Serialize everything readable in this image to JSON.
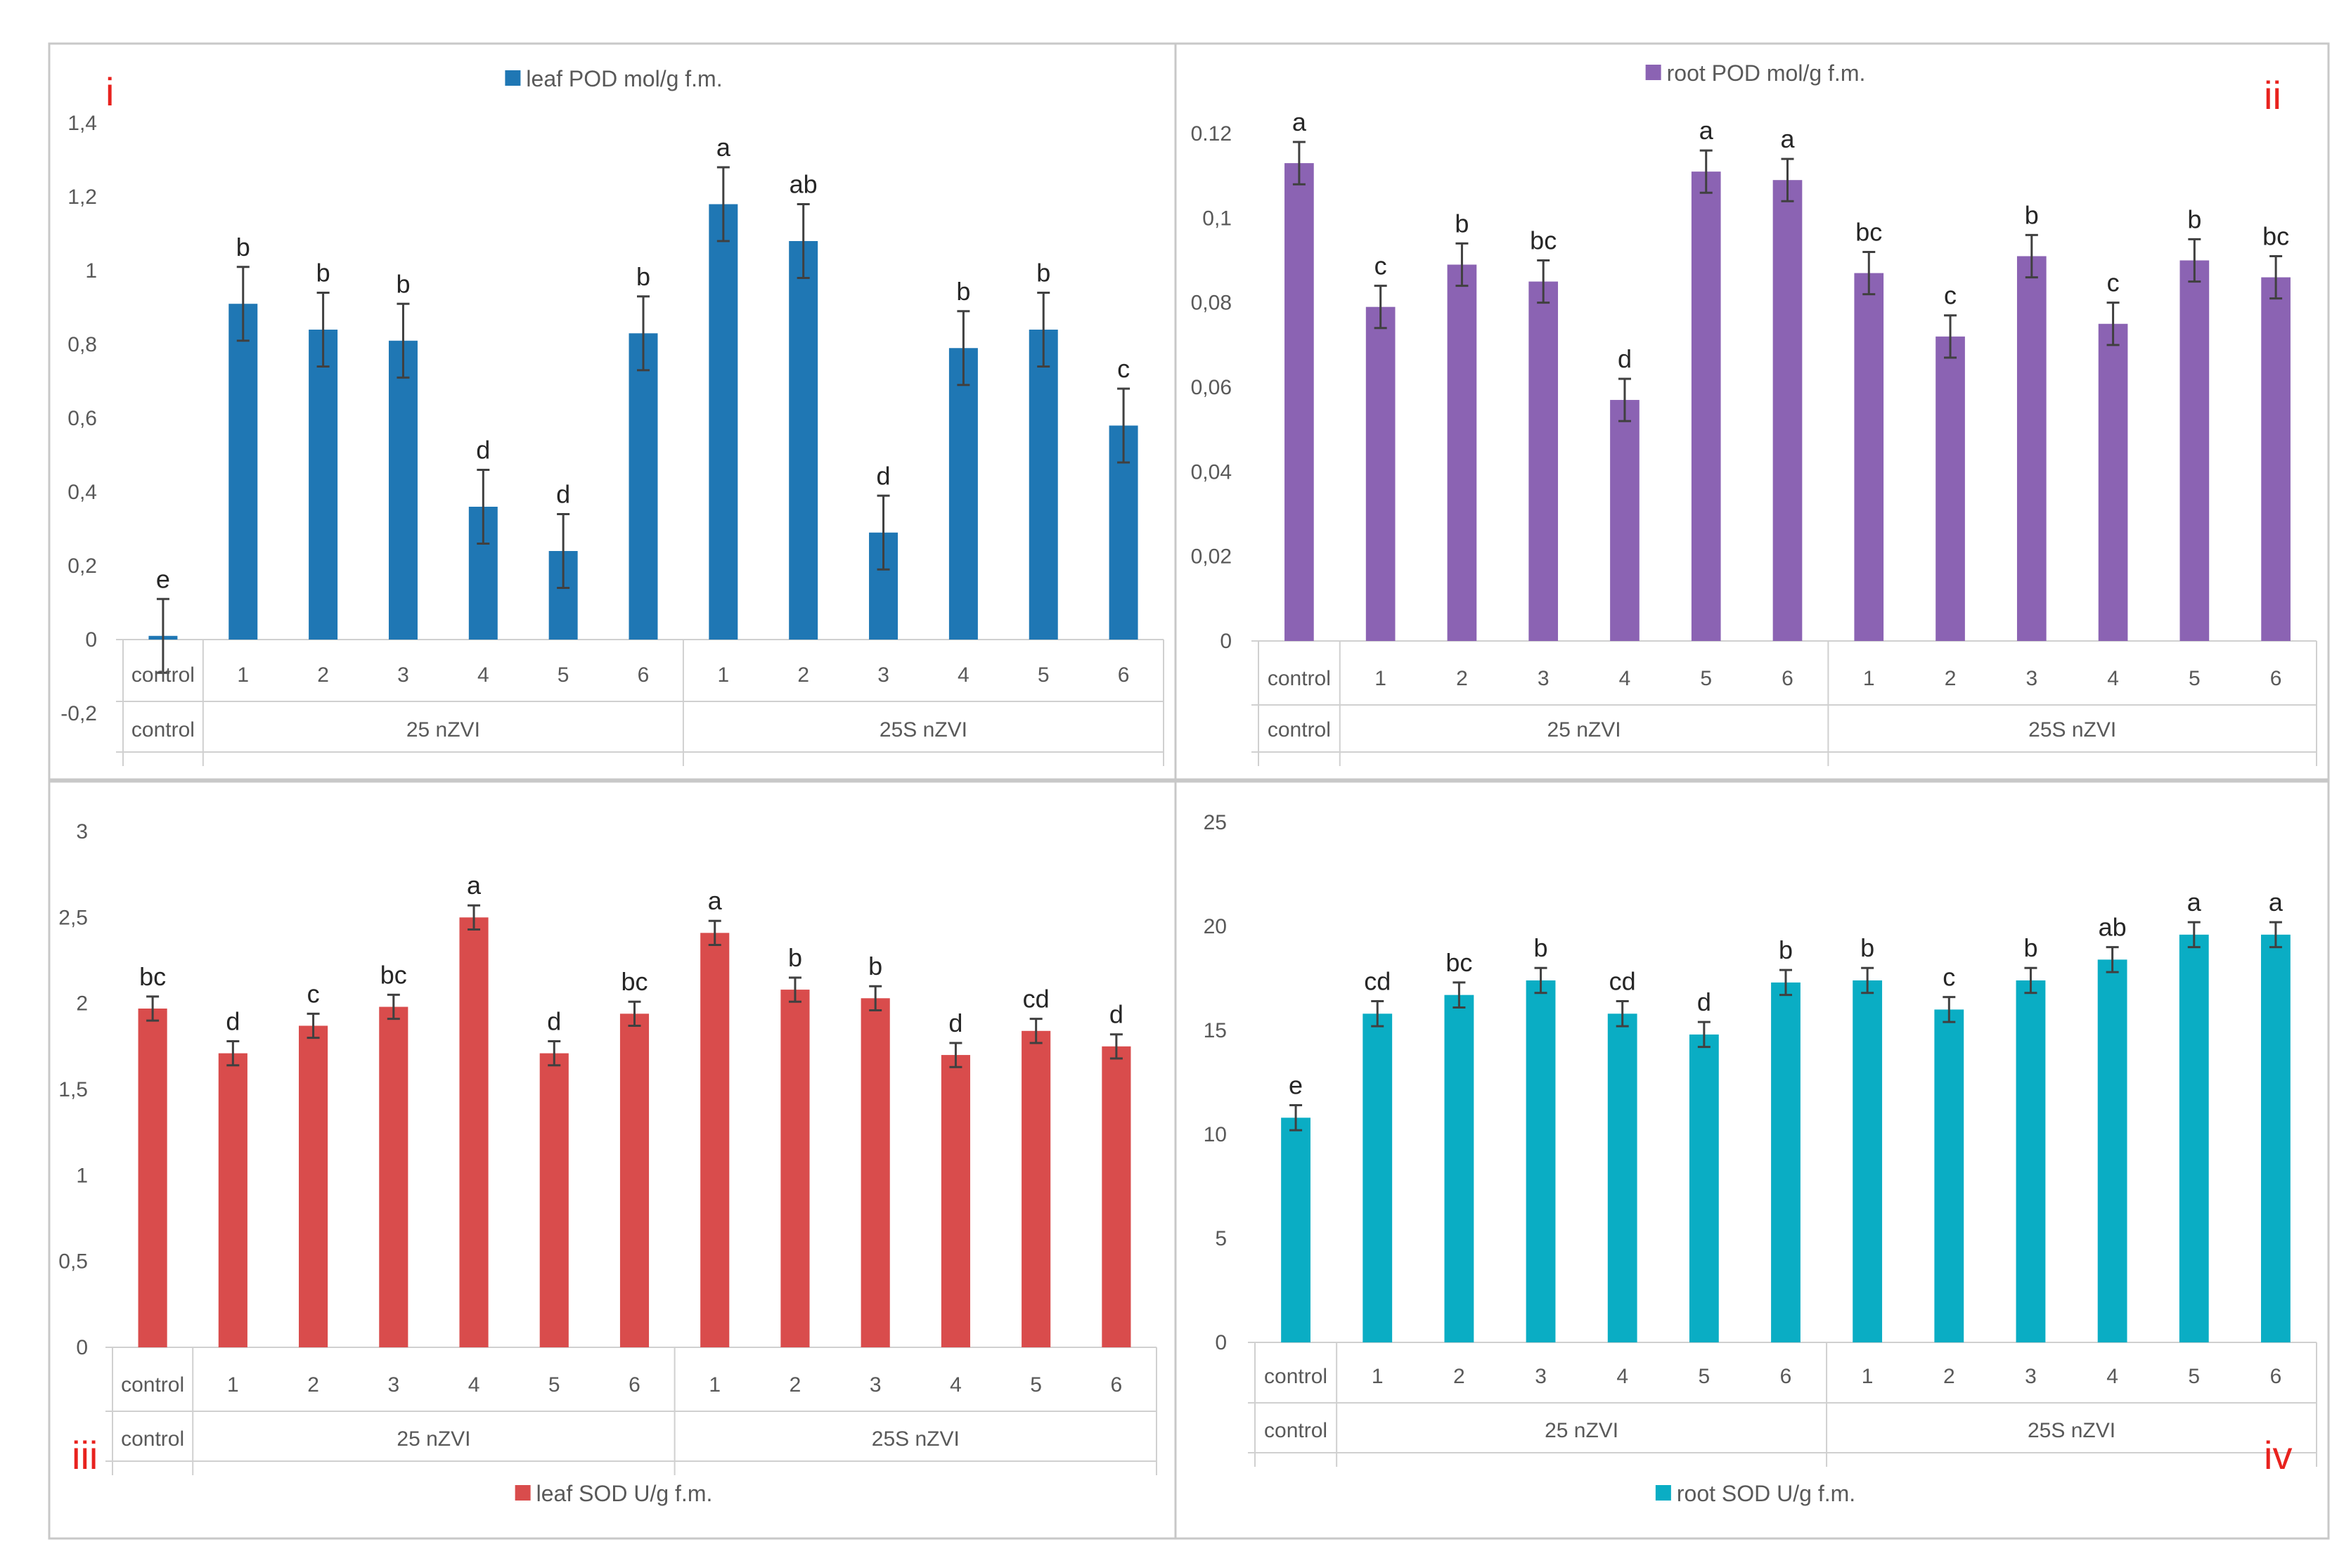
{
  "chart_data": [
    {
      "type": "bar",
      "panel": "i",
      "legend": "leaf POD mol/g f.m.",
      "legend_position": "top-center",
      "color": "#1f77b4",
      "ylim": [
        -0.2,
        1.4
      ],
      "yticks": [
        -0.2,
        0,
        0.2,
        0.4,
        0.6,
        0.8,
        1,
        1.2,
        1.4
      ],
      "ytick_labels": [
        "-0,2",
        "0",
        "0,2",
        "0,4",
        "0,6",
        "0,8",
        "1",
        "1,2",
        "1,4"
      ],
      "categories": [
        "control",
        "1",
        "2",
        "3",
        "4",
        "5",
        "6",
        "1",
        "2",
        "3",
        "4",
        "5",
        "6"
      ],
      "groups": [
        "control",
        "25 nZVI",
        "25S nZVI"
      ],
      "values": [
        0.01,
        0.91,
        0.84,
        0.81,
        0.36,
        0.24,
        0.83,
        1.18,
        1.08,
        0.29,
        0.79,
        0.84,
        0.58
      ],
      "errors": [
        0.1,
        0.1,
        0.1,
        0.1,
        0.1,
        0.1,
        0.1,
        0.1,
        0.1,
        0.1,
        0.1,
        0.1,
        0.1
      ],
      "significance": [
        "e",
        "b",
        "b",
        "b",
        "d",
        "d",
        "b",
        "a",
        "ab",
        "d",
        "b",
        "b",
        "c"
      ]
    },
    {
      "type": "bar",
      "panel": "ii",
      "legend": "root POD mol/g f.m.",
      "legend_position": "top-center",
      "color": "#8b63b3",
      "ylim": [
        0,
        0.12
      ],
      "yticks": [
        0,
        0.02,
        0.04,
        0.06,
        0.08,
        0.1,
        0.12
      ],
      "ytick_labels": [
        "0",
        "0,02",
        "0,04",
        "0,06",
        "0,08",
        "0,1",
        "0.12"
      ],
      "categories": [
        "control",
        "1",
        "2",
        "3",
        "4",
        "5",
        "6",
        "1",
        "2",
        "3",
        "4",
        "5",
        "6"
      ],
      "groups": [
        "control",
        "25 nZVI",
        "25S nZVI"
      ],
      "values": [
        0.113,
        0.079,
        0.089,
        0.085,
        0.057,
        0.111,
        0.109,
        0.087,
        0.072,
        0.091,
        0.075,
        0.09,
        0.086
      ],
      "errors": [
        0.005,
        0.005,
        0.005,
        0.005,
        0.005,
        0.005,
        0.005,
        0.005,
        0.005,
        0.005,
        0.005,
        0.005,
        0.005
      ],
      "significance": [
        "a",
        "c",
        "b",
        "bc",
        "d",
        "a",
        "a",
        "bc",
        "c",
        "b",
        "c",
        "b",
        "bc"
      ]
    },
    {
      "type": "bar",
      "panel": "iii",
      "legend": "leaf SOD U/g f.m.",
      "legend_position": "bottom-center",
      "color": "#d94c4c",
      "ylim": [
        0,
        3
      ],
      "yticks": [
        0,
        0.5,
        1,
        1.5,
        2,
        2.5,
        3
      ],
      "ytick_labels": [
        "0",
        "0,5",
        "1",
        "1,5",
        "2",
        "2,5",
        "3"
      ],
      "categories": [
        "control",
        "1",
        "2",
        "3",
        "4",
        "5",
        "6",
        "1",
        "2",
        "3",
        "4",
        "5",
        "6"
      ],
      "groups": [
        "control",
        "25 nZVI",
        "25S nZVI"
      ],
      "values": [
        1.97,
        1.71,
        1.87,
        1.98,
        2.5,
        1.71,
        1.94,
        2.41,
        2.08,
        2.03,
        1.7,
        1.84,
        1.75
      ],
      "errors": [
        0.07,
        0.07,
        0.07,
        0.07,
        0.07,
        0.07,
        0.07,
        0.07,
        0.07,
        0.07,
        0.07,
        0.07,
        0.07
      ],
      "significance": [
        "bc",
        "d",
        "c",
        "bc",
        "a",
        "d",
        "bc",
        "a",
        "b",
        "b",
        "d",
        "cd",
        "d"
      ]
    },
    {
      "type": "bar",
      "panel": "iv",
      "legend": "root SOD U/g f.m.",
      "legend_position": "bottom-center",
      "color": "#0aadc4",
      "ylim": [
        0,
        25
      ],
      "yticks": [
        0,
        5,
        10,
        15,
        20,
        25
      ],
      "ytick_labels": [
        "0",
        "5",
        "10",
        "15",
        "20",
        "25"
      ],
      "categories": [
        "control",
        "1",
        "2",
        "3",
        "4",
        "5",
        "6",
        "1",
        "2",
        "3",
        "4",
        "5",
        "6"
      ],
      "groups": [
        "control",
        "25 nZVI",
        "25S nZVI"
      ],
      "values": [
        10.8,
        15.8,
        16.7,
        17.4,
        15.8,
        14.8,
        17.3,
        17.4,
        16.0,
        17.4,
        18.4,
        19.6,
        19.6
      ],
      "errors": [
        0.6,
        0.6,
        0.6,
        0.6,
        0.6,
        0.6,
        0.6,
        0.6,
        0.6,
        0.6,
        0.6,
        0.6,
        0.6
      ],
      "significance": [
        "e",
        "cd",
        "bc",
        "b",
        "cd",
        "d",
        "b",
        "b",
        "c",
        "b",
        "ab",
        "a",
        "a"
      ]
    }
  ]
}
